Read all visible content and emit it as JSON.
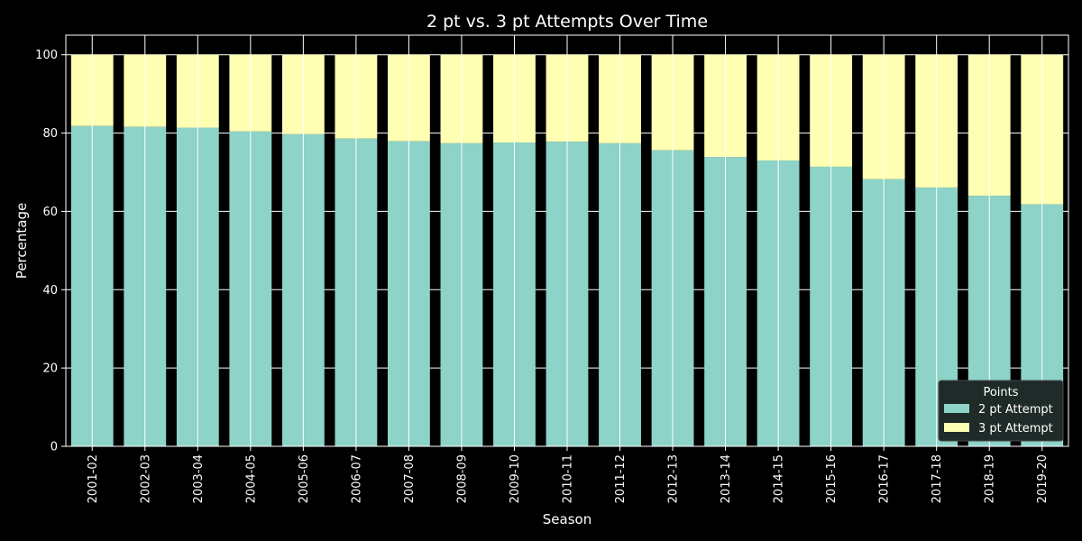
{
  "chart_data": {
    "type": "bar",
    "stacked": true,
    "title": "2 pt vs. 3 pt Attempts Over Time",
    "xlabel": "Season",
    "ylabel": "Percentage",
    "ylim": [
      0,
      105
    ],
    "yticks": [
      0,
      20,
      40,
      60,
      80,
      100
    ],
    "grid": true,
    "legend": {
      "title": "Points",
      "placement": "lower-right"
    },
    "categories": [
      "2001-02",
      "2002-03",
      "2003-04",
      "2004-05",
      "2005-06",
      "2006-07",
      "2007-08",
      "2008-09",
      "2009-10",
      "2010-11",
      "2011-12",
      "2012-13",
      "2013-14",
      "2014-15",
      "2015-16",
      "2016-17",
      "2017-18",
      "2018-19",
      "2019-20"
    ],
    "series": [
      {
        "name": "2 pt Attempt",
        "color": "#8dd3c7",
        "values": [
          81.8,
          81.6,
          81.4,
          80.4,
          79.7,
          78.6,
          77.9,
          77.4,
          77.6,
          77.8,
          77.4,
          75.6,
          73.9,
          73.0,
          71.4,
          68.2,
          66.1,
          64.0,
          61.8
        ]
      },
      {
        "name": "3 pt Attempt",
        "color": "#ffffb3",
        "values": [
          18.2,
          18.4,
          18.6,
          19.6,
          20.3,
          21.4,
          22.1,
          22.6,
          22.4,
          22.2,
          22.6,
          24.4,
          26.1,
          27.0,
          28.6,
          31.8,
          33.9,
          36.0,
          38.2
        ]
      }
    ]
  }
}
